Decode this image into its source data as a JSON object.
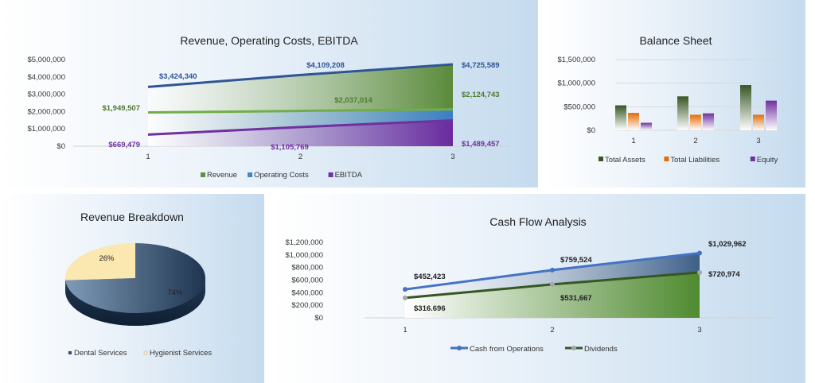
{
  "chart_data": [
    {
      "type": "area",
      "title": "Revenue, Operating Costs, EBITDA",
      "categories": [
        "1",
        "2",
        "3"
      ],
      "ylim": [
        0,
        5000000
      ],
      "yticks": [
        "$0",
        "$1,000,000",
        "$2,000,000",
        "$3,000,000",
        "$4,000,000",
        "$5,000,000"
      ],
      "legend": "bottom",
      "series": [
        {
          "name": "Revenue",
          "values": [
            3424340,
            4109208,
            4725589
          ],
          "labels": [
            "$3,424,340",
            "$4,109,208",
            "$4,725,589"
          ],
          "color": "#5f8f3e",
          "line": "#2f5597"
        },
        {
          "name": "Operating Costs",
          "values": [
            1949507,
            2037014,
            2124743
          ],
          "labels": [
            "$1,949,507",
            "$2,037,014",
            "$2,124,743"
          ],
          "color": "#3f86c6",
          "line": "#70ad47"
        },
        {
          "name": "EBITDA",
          "values": [
            669479,
            1105769,
            1489457
          ],
          "labels": [
            "$669,479",
            "$1,105,769",
            "$1,489,457"
          ],
          "color": "#7030a0",
          "line": "#7030a0"
        }
      ]
    },
    {
      "type": "bar",
      "title": "Balance Sheet",
      "categories": [
        "1",
        "2",
        "3"
      ],
      "ylim": [
        0,
        1500000
      ],
      "yticks": [
        "$0",
        "$500,000",
        "$1,000,000",
        "$1,500,000"
      ],
      "legend": "bottom",
      "series": [
        {
          "name": "Total Assets",
          "values": [
            530000,
            720000,
            960000
          ],
          "color": "#375623"
        },
        {
          "name": "Total Liabilities",
          "values": [
            370000,
            330000,
            330000
          ],
          "color": "#e46c0a"
        },
        {
          "name": "Equity",
          "values": [
            160000,
            360000,
            630000
          ],
          "color": "#7030a0"
        }
      ]
    },
    {
      "type": "pie",
      "title": "Revenue Breakdown",
      "legend": "bottom",
      "slices": [
        {
          "name": "Dental Services",
          "value": 74,
          "label": "74%",
          "color": "#2e4a6b"
        },
        {
          "name": "Hygienist Services",
          "value": 26,
          "label": "26%",
          "color": "#fbe7b0"
        }
      ]
    },
    {
      "type": "line",
      "title": "Cash Flow Analysis",
      "categories": [
        "1",
        "2",
        "3"
      ],
      "ylim": [
        0,
        1200000
      ],
      "yticks": [
        "$0",
        "$200,000",
        "$400,000",
        "$600,000",
        "$800,000",
        "$1,000,000",
        "$1,200,000"
      ],
      "legend": "bottom",
      "series": [
        {
          "name": "Cash from Operations",
          "values": [
            452423,
            759524,
            1029962
          ],
          "labels": [
            "$452,423",
            "$759,524",
            "$1,029,962"
          ],
          "color": "#4472c4"
        },
        {
          "name": "Dividends",
          "values": [
            316696,
            531667,
            720974
          ],
          "labels": [
            "$316.696",
            "$531,667",
            "$720,974"
          ],
          "color": "#375623"
        }
      ]
    }
  ]
}
